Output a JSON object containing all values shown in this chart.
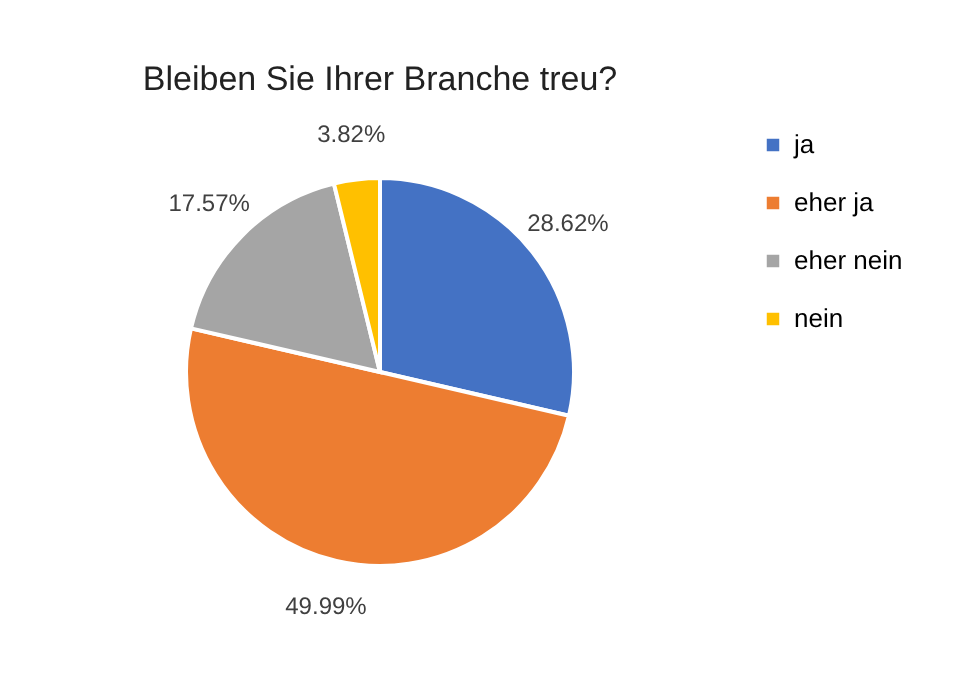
{
  "chart_data": {
    "type": "pie",
    "title": "Bleiben Sie Ihrer Branche treu?",
    "categories": [
      "ja",
      "eher ja",
      "eher nein",
      "nein"
    ],
    "values": [
      28.62,
      49.99,
      17.57,
      3.82
    ],
    "colors": [
      "#4472c4",
      "#ed7d31",
      "#a5a5a5",
      "#ffc000"
    ],
    "value_labels": [
      "28.62%",
      "49.99%",
      "17.57%",
      "3.82%"
    ],
    "legend": "right"
  }
}
